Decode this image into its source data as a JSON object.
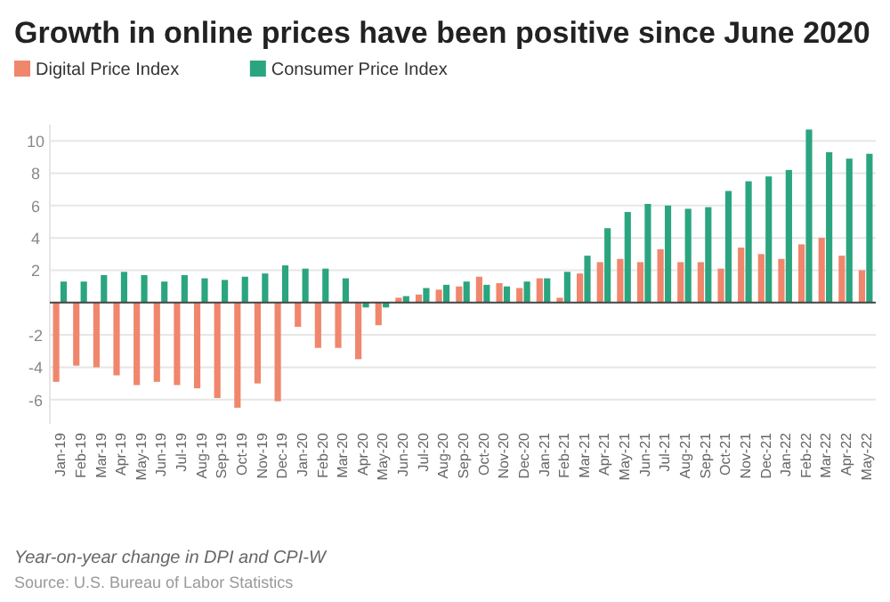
{
  "chart_data": {
    "type": "bar",
    "title": "Growth in online prices have been positive since June 2020",
    "categories": [
      "Jan-19",
      "Feb-19",
      "Mar-19",
      "Apr-19",
      "May-19",
      "Jun-19",
      "Jul-19",
      "Aug-19",
      "Sep-19",
      "Oct-19",
      "Nov-19",
      "Dec-19",
      "Jan-20",
      "Feb-20",
      "Mar-20",
      "Apr-20",
      "May-20",
      "Jun-20",
      "Jul-20",
      "Aug-20",
      "Sep-20",
      "Oct-20",
      "Nov-20",
      "Dec-20",
      "Jan-21",
      "Feb-21",
      "Mar-21",
      "Apr-21",
      "May-21",
      "Jun-21",
      "Jul-21",
      "Aug-21",
      "Sep-21",
      "Oct-21",
      "Nov-21",
      "Dec-21",
      "Jan-22",
      "Feb-22",
      "Mar-22",
      "Apr-22",
      "May-22"
    ],
    "series": [
      {
        "name": "Digital Price Index",
        "color": "#f0866c",
        "values": [
          -4.9,
          -3.9,
          -4.0,
          -4.5,
          -5.1,
          -4.9,
          -5.1,
          -5.3,
          -5.9,
          -6.5,
          -5.0,
          -6.1,
          -1.5,
          -2.8,
          -2.8,
          -3.5,
          -1.4,
          0.3,
          0.5,
          0.8,
          1.0,
          1.6,
          1.2,
          0.9,
          1.5,
          0.3,
          1.8,
          2.5,
          2.7,
          2.5,
          3.3,
          2.5,
          2.5,
          2.1,
          3.4,
          3.0,
          2.7,
          3.6,
          4.0,
          2.9,
          2.0
        ]
      },
      {
        "name": "Consumer Price Index",
        "color": "#2aa57f",
        "values": [
          1.3,
          1.3,
          1.7,
          1.9,
          1.7,
          1.3,
          1.7,
          1.5,
          1.4,
          1.6,
          1.8,
          2.3,
          2.1,
          2.1,
          1.5,
          -0.3,
          -0.3,
          0.4,
          0.9,
          1.1,
          1.3,
          1.1,
          1.0,
          1.3,
          1.5,
          1.9,
          2.9,
          4.6,
          5.6,
          6.1,
          6.0,
          5.8,
          5.9,
          6.9,
          7.5,
          7.8,
          8.2,
          10.7,
          9.3,
          8.9,
          9.2
        ]
      }
    ],
    "ylim": [
      -7.5,
      11
    ],
    "yticks": [
      -6,
      -4,
      -2,
      2,
      4,
      6,
      8,
      10
    ],
    "grid": "y",
    "legend": "top left",
    "annotations": [
      "Year-on-year change in DPI and CPI-W",
      "Source: U.S. Bureau of Labor Statistics"
    ]
  }
}
